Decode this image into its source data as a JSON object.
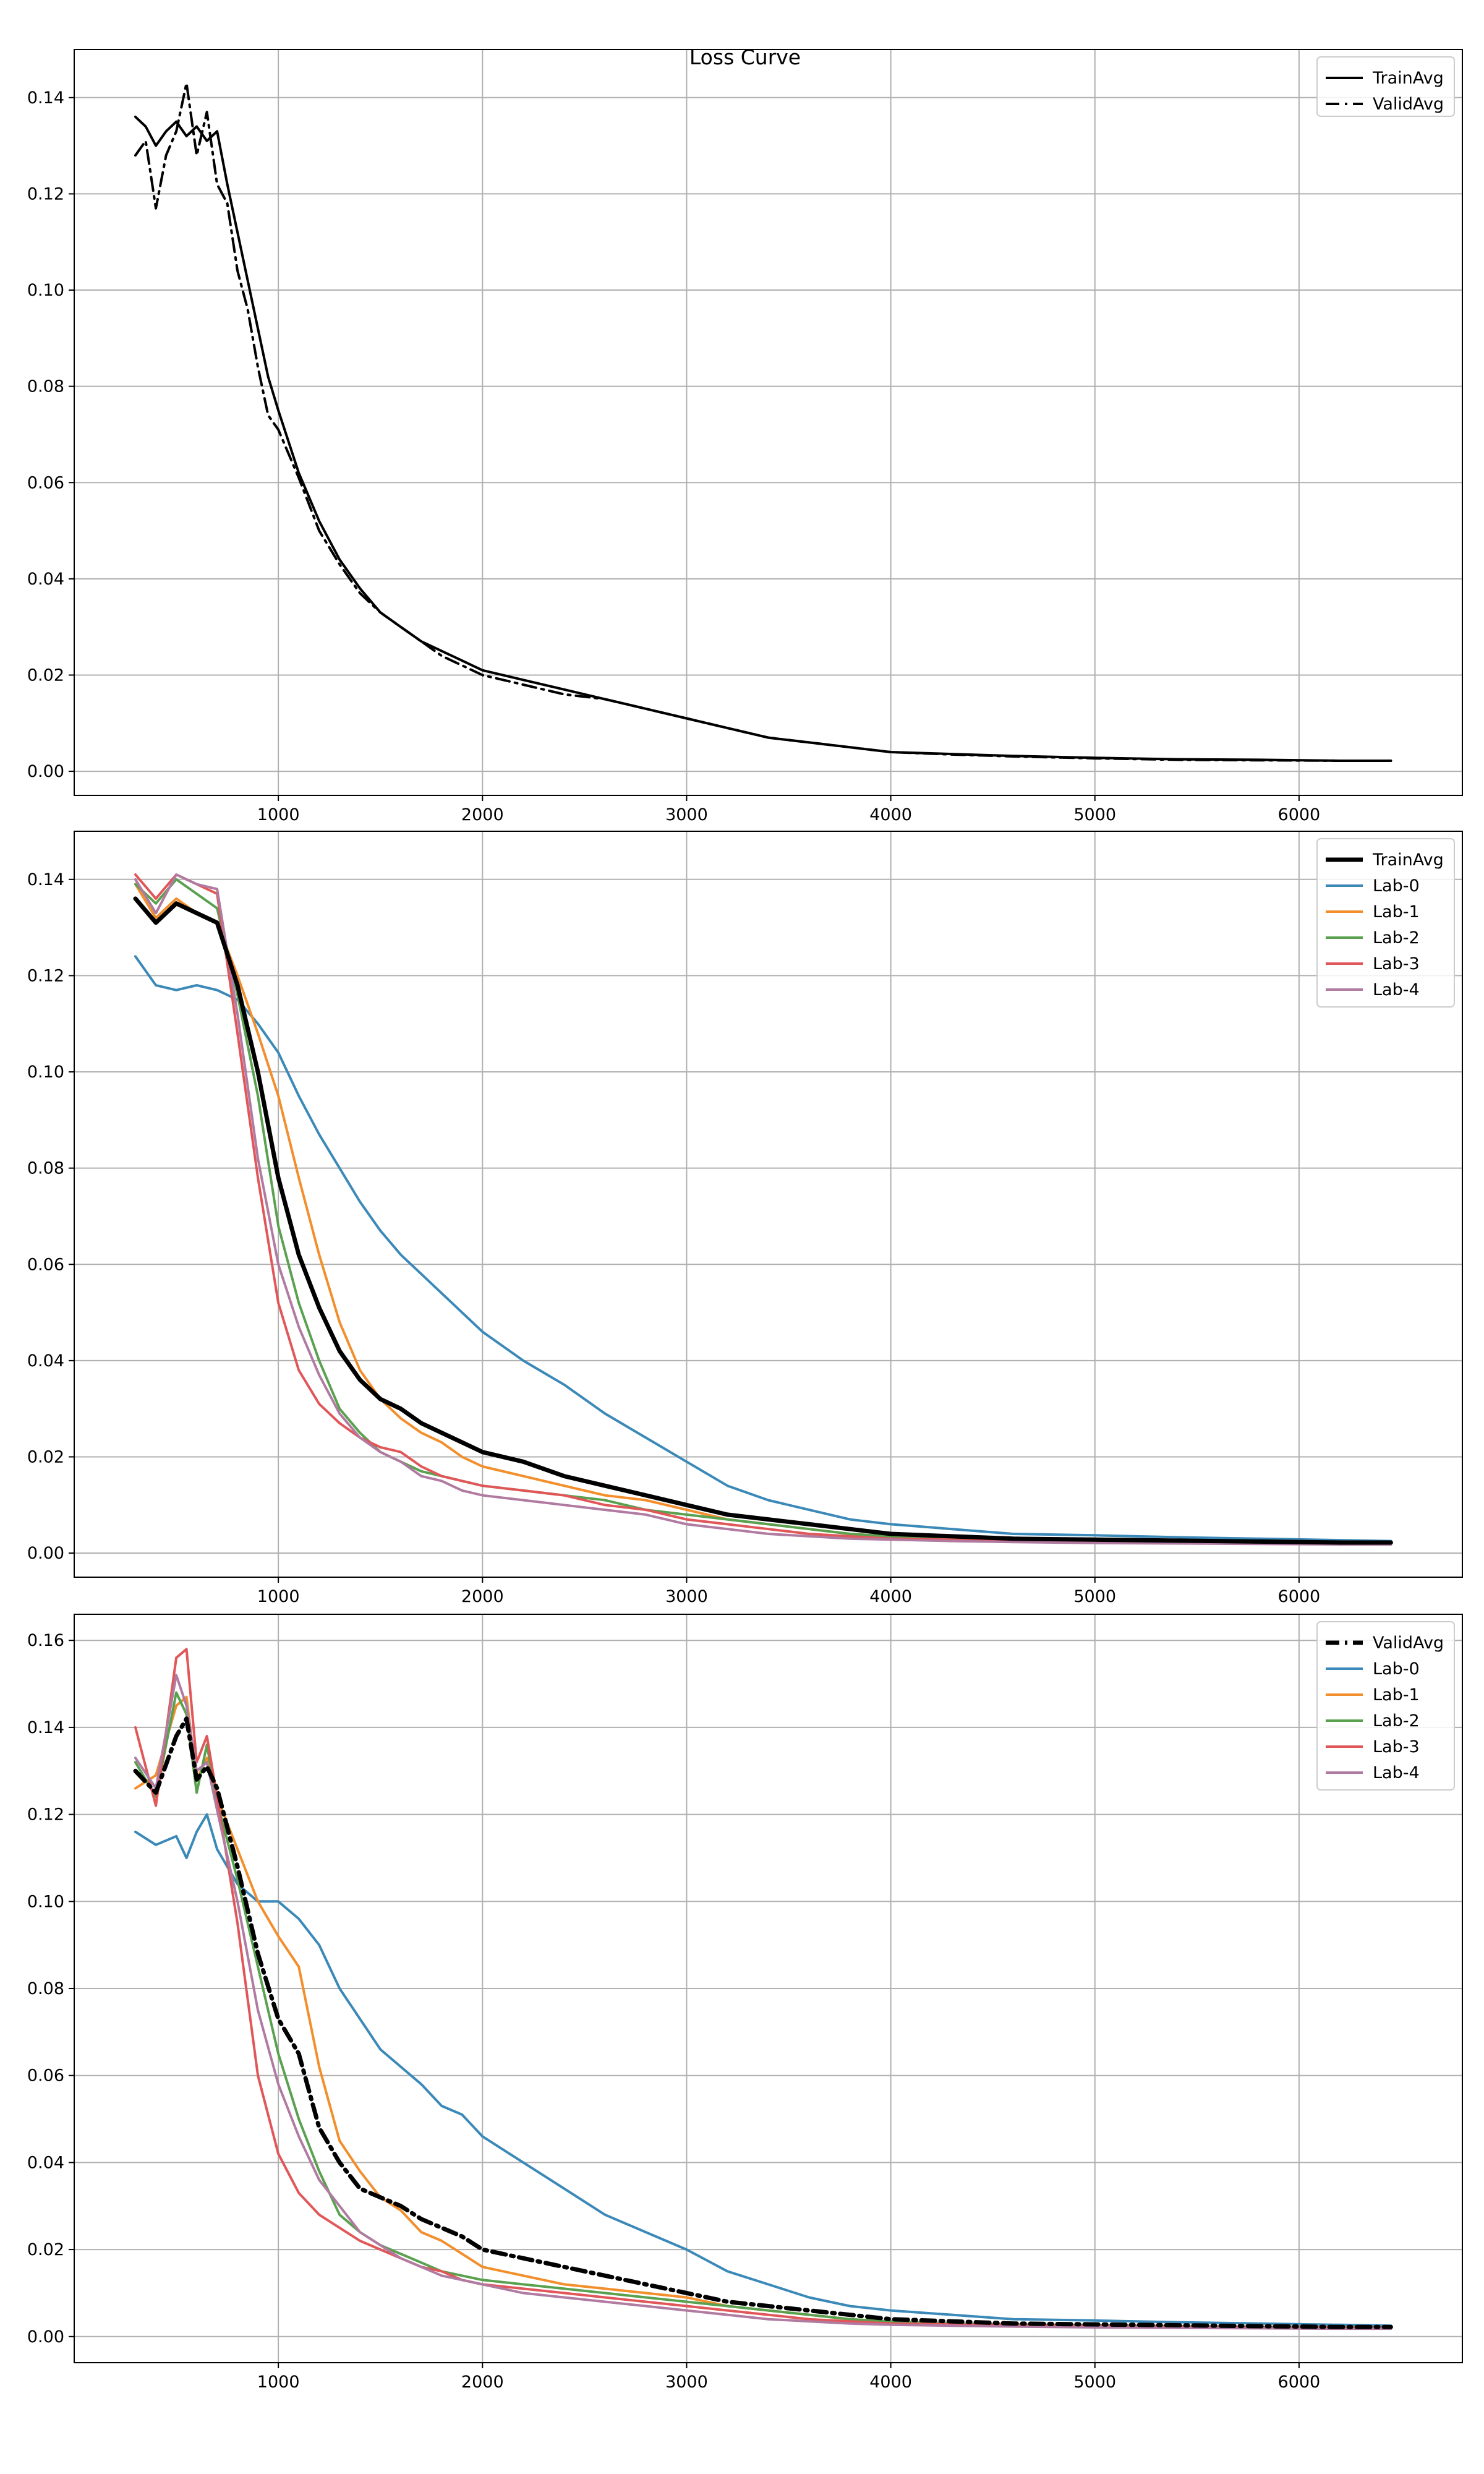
{
  "chart_data": [
    {
      "type": "line",
      "title": "Loss Curve",
      "xlabel": "",
      "ylabel": "",
      "xlim": [
        0,
        6800
      ],
      "ylim": [
        -0.005,
        0.15
      ],
      "xticks": [
        1000,
        2000,
        3000,
        4000,
        5000,
        6000
      ],
      "yticks": [
        0.0,
        0.02,
        0.04,
        0.06,
        0.08,
        0.1,
        0.12,
        0.14
      ],
      "ytick_labels": [
        "0.00",
        "0.02",
        "0.04",
        "0.06",
        "0.08",
        "0.10",
        "0.12",
        "0.14"
      ],
      "grid": true,
      "legend_position": "top-right",
      "x": [
        300,
        350,
        400,
        450,
        500,
        550,
        600,
        650,
        700,
        750,
        800,
        850,
        900,
        950,
        1000,
        1100,
        1200,
        1300,
        1400,
        1500,
        1600,
        1700,
        1800,
        1900,
        2000,
        2200,
        2400,
        2600,
        2800,
        3000,
        3200,
        3400,
        3600,
        3800,
        4000,
        4300,
        4600,
        5000,
        5400,
        5800,
        6200,
        6450
      ],
      "series": [
        {
          "name": "TrainAvg",
          "color": "#000000",
          "dash": "solid",
          "width": 4,
          "values": [
            0.136,
            0.134,
            0.13,
            0.133,
            0.135,
            0.132,
            0.134,
            0.131,
            0.133,
            0.122,
            0.112,
            0.102,
            0.092,
            0.082,
            0.075,
            0.062,
            0.052,
            0.044,
            0.038,
            0.033,
            0.03,
            0.027,
            0.025,
            0.023,
            0.021,
            0.019,
            0.017,
            0.015,
            0.013,
            0.011,
            0.009,
            0.007,
            0.006,
            0.005,
            0.004,
            0.0036,
            0.0032,
            0.0028,
            0.0025,
            0.0024,
            0.0022,
            0.0022
          ]
        },
        {
          "name": "ValidAvg",
          "color": "#000000",
          "dash": "dashdot",
          "width": 4,
          "values": [
            0.128,
            0.131,
            0.117,
            0.128,
            0.133,
            0.143,
            0.128,
            0.137,
            0.122,
            0.118,
            0.104,
            0.096,
            0.084,
            0.074,
            0.071,
            0.061,
            0.05,
            0.043,
            0.037,
            0.033,
            0.03,
            0.027,
            0.024,
            0.022,
            0.02,
            0.018,
            0.016,
            0.015,
            0.013,
            0.011,
            0.009,
            0.007,
            0.006,
            0.005,
            0.004,
            0.0035,
            0.0031,
            0.0027,
            0.0024,
            0.0023,
            0.0022,
            0.0022
          ]
        }
      ]
    },
    {
      "type": "line",
      "title": "",
      "xlabel": "",
      "ylabel": "",
      "xlim": [
        0,
        6800
      ],
      "ylim": [
        -0.005,
        0.15
      ],
      "xticks": [
        1000,
        2000,
        3000,
        4000,
        5000,
        6000
      ],
      "yticks": [
        0.0,
        0.02,
        0.04,
        0.06,
        0.08,
        0.1,
        0.12,
        0.14
      ],
      "ytick_labels": [
        "0.00",
        "0.02",
        "0.04",
        "0.06",
        "0.08",
        "0.10",
        "0.12",
        "0.14"
      ],
      "grid": true,
      "legend_position": "top-right",
      "x": [
        300,
        400,
        500,
        600,
        700,
        800,
        900,
        1000,
        1100,
        1200,
        1300,
        1400,
        1500,
        1600,
        1700,
        1800,
        1900,
        2000,
        2200,
        2400,
        2600,
        2800,
        3000,
        3200,
        3400,
        3600,
        3800,
        4000,
        4300,
        4600,
        5000,
        5400,
        5800,
        6200,
        6450
      ],
      "series": [
        {
          "name": "TrainAvg",
          "color": "#000000",
          "dash": "solid",
          "width": 7,
          "values": [
            0.136,
            0.131,
            0.135,
            0.133,
            0.131,
            0.118,
            0.1,
            0.078,
            0.062,
            0.051,
            0.042,
            0.036,
            0.032,
            0.03,
            0.027,
            0.025,
            0.023,
            0.021,
            0.019,
            0.016,
            0.014,
            0.012,
            0.01,
            0.008,
            0.007,
            0.006,
            0.005,
            0.004,
            0.0035,
            0.003,
            0.0028,
            0.0026,
            0.0024,
            0.0022,
            0.0022
          ]
        },
        {
          "name": "Lab-0",
          "color": "#3b89b8",
          "dash": "solid",
          "width": 4,
          "values": [
            0.124,
            0.118,
            0.117,
            0.118,
            0.117,
            0.115,
            0.11,
            0.104,
            0.095,
            0.087,
            0.08,
            0.073,
            0.067,
            0.062,
            0.058,
            0.054,
            0.05,
            0.046,
            0.04,
            0.035,
            0.029,
            0.024,
            0.019,
            0.014,
            0.011,
            0.009,
            0.007,
            0.006,
            0.005,
            0.004,
            0.0037,
            0.0033,
            0.003,
            0.0027,
            0.0025
          ]
        },
        {
          "name": "Lab-1",
          "color": "#f28e2b",
          "dash": "solid",
          "width": 4,
          "values": [
            0.139,
            0.132,
            0.136,
            0.133,
            0.131,
            0.12,
            0.108,
            0.095,
            0.078,
            0.062,
            0.048,
            0.038,
            0.032,
            0.028,
            0.025,
            0.023,
            0.02,
            0.018,
            0.016,
            0.014,
            0.012,
            0.011,
            0.009,
            0.007,
            0.006,
            0.005,
            0.004,
            0.0035,
            0.003,
            0.0028,
            0.0026,
            0.0024,
            0.0022,
            0.0021,
            0.002
          ]
        },
        {
          "name": "Lab-2",
          "color": "#59a14f",
          "dash": "solid",
          "width": 4,
          "values": [
            0.139,
            0.135,
            0.14,
            0.137,
            0.134,
            0.116,
            0.095,
            0.068,
            0.052,
            0.04,
            0.03,
            0.025,
            0.021,
            0.019,
            0.017,
            0.016,
            0.015,
            0.014,
            0.013,
            0.012,
            0.011,
            0.009,
            0.008,
            0.007,
            0.006,
            0.005,
            0.004,
            0.0035,
            0.003,
            0.0027,
            0.0025,
            0.0023,
            0.0021,
            0.002,
            0.002
          ]
        },
        {
          "name": "Lab-3",
          "color": "#e15759",
          "dash": "solid",
          "width": 4,
          "values": [
            0.141,
            0.136,
            0.141,
            0.139,
            0.137,
            0.108,
            0.078,
            0.052,
            0.038,
            0.031,
            0.027,
            0.024,
            0.022,
            0.021,
            0.018,
            0.016,
            0.015,
            0.014,
            0.013,
            0.012,
            0.01,
            0.009,
            0.007,
            0.006,
            0.005,
            0.004,
            0.0035,
            0.003,
            0.0028,
            0.0026,
            0.0024,
            0.0022,
            0.0021,
            0.002,
            0.002
          ]
        },
        {
          "name": "Lab-4",
          "color": "#b07aa1",
          "dash": "solid",
          "width": 4,
          "values": [
            0.14,
            0.133,
            0.141,
            0.139,
            0.138,
            0.112,
            0.082,
            0.06,
            0.047,
            0.037,
            0.029,
            0.024,
            0.021,
            0.019,
            0.016,
            0.015,
            0.013,
            0.012,
            0.011,
            0.01,
            0.009,
            0.008,
            0.006,
            0.005,
            0.004,
            0.0035,
            0.003,
            0.0028,
            0.0025,
            0.0023,
            0.0021,
            0.002,
            0.0019,
            0.0018,
            0.0018
          ]
        }
      ]
    },
    {
      "type": "line",
      "title": "",
      "xlabel": "",
      "ylabel": "",
      "xlim": [
        0,
        6800
      ],
      "ylim": [
        -0.006,
        0.166
      ],
      "xticks": [
        1000,
        2000,
        3000,
        4000,
        5000,
        6000
      ],
      "yticks": [
        0.0,
        0.02,
        0.04,
        0.06,
        0.08,
        0.1,
        0.12,
        0.14,
        0.16
      ],
      "ytick_labels": [
        "0.00",
        "0.02",
        "0.04",
        "0.06",
        "0.08",
        "0.10",
        "0.12",
        "0.14",
        "0.16"
      ],
      "grid": true,
      "legend_position": "top-right",
      "x": [
        300,
        400,
        500,
        550,
        600,
        650,
        700,
        800,
        900,
        1000,
        1100,
        1200,
        1300,
        1400,
        1500,
        1600,
        1700,
        1800,
        1900,
        2000,
        2200,
        2400,
        2600,
        2800,
        3000,
        3200,
        3400,
        3600,
        3800,
        4000,
        4300,
        4600,
        5000,
        5400,
        5800,
        6200,
        6450
      ],
      "series": [
        {
          "name": "ValidAvg",
          "color": "#000000",
          "dash": "dashdot",
          "width": 7,
          "values": [
            0.13,
            0.125,
            0.138,
            0.142,
            0.128,
            0.131,
            0.126,
            0.108,
            0.088,
            0.073,
            0.065,
            0.048,
            0.04,
            0.034,
            0.032,
            0.03,
            0.027,
            0.025,
            0.023,
            0.02,
            0.018,
            0.016,
            0.014,
            0.012,
            0.01,
            0.008,
            0.007,
            0.006,
            0.005,
            0.004,
            0.0035,
            0.003,
            0.0028,
            0.0026,
            0.0024,
            0.0022,
            0.0022
          ]
        },
        {
          "name": "Lab-0",
          "color": "#3b89b8",
          "dash": "solid",
          "width": 4,
          "values": [
            0.116,
            0.113,
            0.115,
            0.11,
            0.116,
            0.12,
            0.112,
            0.104,
            0.1,
            0.1,
            0.096,
            0.09,
            0.08,
            0.073,
            0.066,
            0.062,
            0.058,
            0.053,
            0.051,
            0.046,
            0.04,
            0.034,
            0.028,
            0.024,
            0.02,
            0.015,
            0.012,
            0.009,
            0.007,
            0.006,
            0.005,
            0.004,
            0.0037,
            0.0033,
            0.003,
            0.0027,
            0.0025
          ]
        },
        {
          "name": "Lab-1",
          "color": "#f28e2b",
          "dash": "solid",
          "width": 4,
          "values": [
            0.126,
            0.129,
            0.145,
            0.147,
            0.128,
            0.133,
            0.124,
            0.112,
            0.1,
            0.092,
            0.085,
            0.062,
            0.045,
            0.038,
            0.032,
            0.029,
            0.024,
            0.022,
            0.019,
            0.016,
            0.014,
            0.012,
            0.011,
            0.01,
            0.009,
            0.007,
            0.006,
            0.005,
            0.004,
            0.0035,
            0.003,
            0.0028,
            0.0026,
            0.0024,
            0.0022,
            0.0021,
            0.002
          ]
        },
        {
          "name": "Lab-2",
          "color": "#59a14f",
          "dash": "solid",
          "width": 4,
          "values": [
            0.132,
            0.124,
            0.148,
            0.143,
            0.125,
            0.136,
            0.123,
            0.105,
            0.085,
            0.065,
            0.05,
            0.038,
            0.028,
            0.024,
            0.021,
            0.019,
            0.017,
            0.015,
            0.014,
            0.013,
            0.012,
            0.011,
            0.01,
            0.009,
            0.008,
            0.007,
            0.006,
            0.005,
            0.004,
            0.0035,
            0.003,
            0.0027,
            0.0025,
            0.0023,
            0.0021,
            0.002,
            0.002
          ]
        },
        {
          "name": "Lab-3",
          "color": "#e15759",
          "dash": "solid",
          "width": 4,
          "values": [
            0.14,
            0.122,
            0.156,
            0.158,
            0.132,
            0.138,
            0.124,
            0.095,
            0.06,
            0.042,
            0.033,
            0.028,
            0.025,
            0.022,
            0.02,
            0.018,
            0.016,
            0.015,
            0.013,
            0.012,
            0.011,
            0.01,
            0.009,
            0.008,
            0.007,
            0.006,
            0.005,
            0.004,
            0.0035,
            0.003,
            0.0028,
            0.0026,
            0.0024,
            0.0022,
            0.0021,
            0.002,
            0.002
          ]
        },
        {
          "name": "Lab-4",
          "color": "#b07aa1",
          "dash": "solid",
          "width": 4,
          "values": [
            0.133,
            0.126,
            0.152,
            0.145,
            0.13,
            0.132,
            0.121,
            0.1,
            0.075,
            0.058,
            0.046,
            0.036,
            0.03,
            0.024,
            0.021,
            0.018,
            0.016,
            0.014,
            0.013,
            0.012,
            0.01,
            0.009,
            0.008,
            0.007,
            0.006,
            0.005,
            0.004,
            0.0035,
            0.003,
            0.0027,
            0.0025,
            0.0023,
            0.0021,
            0.002,
            0.0019,
            0.0018,
            0.0018
          ]
        }
      ]
    }
  ]
}
